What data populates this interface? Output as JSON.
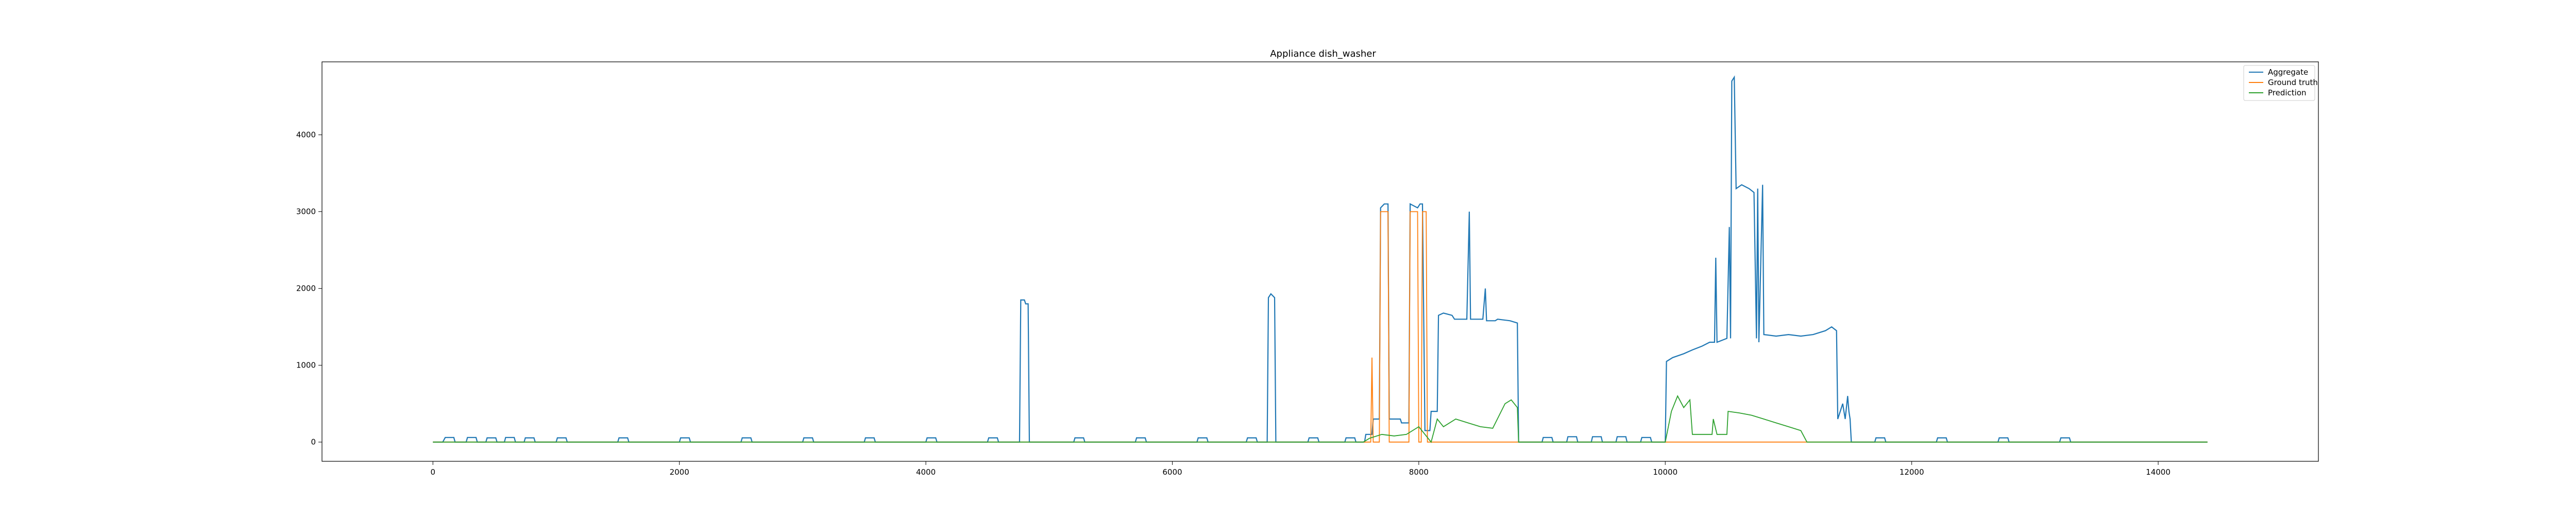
{
  "chart_data": {
    "type": "line",
    "title": "Appliance dish_washer",
    "xlabel": "",
    "ylabel": "",
    "xlim": [
      -900,
      15300
    ],
    "ylim": [
      -250,
      4950
    ],
    "x_ticks": [
      0,
      2000,
      4000,
      6000,
      8000,
      10000,
      12000,
      14000
    ],
    "y_ticks": [
      0,
      1000,
      2000,
      3000,
      4000
    ],
    "x_tick_labels": [
      "0",
      "2000",
      "4000",
      "6000",
      "8000",
      "10000",
      "12000",
      "14000"
    ],
    "y_tick_labels": [
      "0",
      "1000",
      "2000",
      "3000",
      "4000"
    ],
    "grid": false,
    "legend": {
      "placement": "top-right",
      "entries": [
        "Aggregate",
        "Ground truth",
        "Prediction"
      ]
    },
    "colors": {
      "Aggregate": "#1f77b4",
      "Ground truth": "#ff7f0e",
      "Prediction": "#2ca02c"
    },
    "series": [
      {
        "name": "Aggregate",
        "points": [
          [
            0,
            0
          ],
          [
            80,
            0
          ],
          [
            100,
            60
          ],
          [
            170,
            60
          ],
          [
            180,
            0
          ],
          [
            270,
            0
          ],
          [
            280,
            60
          ],
          [
            350,
            60
          ],
          [
            360,
            0
          ],
          [
            430,
            0
          ],
          [
            440,
            55
          ],
          [
            510,
            55
          ],
          [
            520,
            0
          ],
          [
            580,
            0
          ],
          [
            590,
            60
          ],
          [
            660,
            60
          ],
          [
            670,
            0
          ],
          [
            740,
            0
          ],
          [
            750,
            55
          ],
          [
            820,
            55
          ],
          [
            830,
            0
          ],
          [
            1000,
            0
          ],
          [
            1010,
            55
          ],
          [
            1080,
            55
          ],
          [
            1090,
            0
          ],
          [
            1500,
            0
          ],
          [
            1510,
            55
          ],
          [
            1580,
            55
          ],
          [
            1590,
            0
          ],
          [
            2000,
            0
          ],
          [
            2010,
            55
          ],
          [
            2080,
            55
          ],
          [
            2090,
            0
          ],
          [
            2500,
            0
          ],
          [
            2510,
            55
          ],
          [
            2580,
            55
          ],
          [
            2590,
            0
          ],
          [
            3000,
            0
          ],
          [
            3010,
            55
          ],
          [
            3080,
            55
          ],
          [
            3090,
            0
          ],
          [
            3500,
            0
          ],
          [
            3510,
            55
          ],
          [
            3580,
            55
          ],
          [
            3590,
            0
          ],
          [
            4000,
            0
          ],
          [
            4010,
            55
          ],
          [
            4080,
            55
          ],
          [
            4090,
            0
          ],
          [
            4500,
            0
          ],
          [
            4510,
            55
          ],
          [
            4580,
            55
          ],
          [
            4590,
            0
          ],
          [
            4760,
            0
          ],
          [
            4770,
            1850
          ],
          [
            4800,
            1850
          ],
          [
            4810,
            1800
          ],
          [
            4830,
            1800
          ],
          [
            4840,
            0
          ],
          [
            5200,
            0
          ],
          [
            5210,
            55
          ],
          [
            5280,
            55
          ],
          [
            5290,
            0
          ],
          [
            5700,
            0
          ],
          [
            5710,
            55
          ],
          [
            5780,
            55
          ],
          [
            5790,
            0
          ],
          [
            6200,
            0
          ],
          [
            6210,
            55
          ],
          [
            6280,
            55
          ],
          [
            6290,
            0
          ],
          [
            6600,
            0
          ],
          [
            6610,
            55
          ],
          [
            6680,
            55
          ],
          [
            6690,
            0
          ],
          [
            6770,
            0
          ],
          [
            6780,
            1880
          ],
          [
            6800,
            1930
          ],
          [
            6830,
            1880
          ],
          [
            6840,
            0
          ],
          [
            7100,
            0
          ],
          [
            7110,
            55
          ],
          [
            7180,
            55
          ],
          [
            7190,
            0
          ],
          [
            7400,
            0
          ],
          [
            7410,
            55
          ],
          [
            7480,
            55
          ],
          [
            7490,
            0
          ],
          [
            7560,
            0
          ],
          [
            7570,
            100
          ],
          [
            7620,
            100
          ],
          [
            7630,
            300
          ],
          [
            7680,
            300
          ],
          [
            7690,
            3050
          ],
          [
            7720,
            3100
          ],
          [
            7750,
            3100
          ],
          [
            7760,
            300
          ],
          [
            7850,
            300
          ],
          [
            7860,
            250
          ],
          [
            7920,
            250
          ],
          [
            7930,
            3100
          ],
          [
            7990,
            3050
          ],
          [
            8010,
            3100
          ],
          [
            8030,
            3100
          ],
          [
            8050,
            150
          ],
          [
            8090,
            150
          ],
          [
            8100,
            400
          ],
          [
            8150,
            400
          ],
          [
            8160,
            1650
          ],
          [
            8200,
            1680
          ],
          [
            8270,
            1650
          ],
          [
            8290,
            1600
          ],
          [
            8390,
            1600
          ],
          [
            8410,
            3000
          ],
          [
            8420,
            1600
          ],
          [
            8520,
            1600
          ],
          [
            8540,
            2000
          ],
          [
            8550,
            1580
          ],
          [
            8620,
            1580
          ],
          [
            8640,
            1600
          ],
          [
            8740,
            1580
          ],
          [
            8800,
            1550
          ],
          [
            8810,
            0
          ],
          [
            9000,
            0
          ],
          [
            9010,
            60
          ],
          [
            9080,
            60
          ],
          [
            9090,
            0
          ],
          [
            9200,
            0
          ],
          [
            9210,
            70
          ],
          [
            9280,
            70
          ],
          [
            9290,
            0
          ],
          [
            9400,
            0
          ],
          [
            9410,
            70
          ],
          [
            9480,
            70
          ],
          [
            9490,
            0
          ],
          [
            9600,
            0
          ],
          [
            9610,
            70
          ],
          [
            9680,
            70
          ],
          [
            9690,
            0
          ],
          [
            9800,
            0
          ],
          [
            9810,
            60
          ],
          [
            9880,
            60
          ],
          [
            9890,
            0
          ],
          [
            10000,
            0
          ],
          [
            10010,
            1050
          ],
          [
            10060,
            1100
          ],
          [
            10150,
            1150
          ],
          [
            10220,
            1200
          ],
          [
            10300,
            1250
          ],
          [
            10360,
            1300
          ],
          [
            10400,
            1300
          ],
          [
            10410,
            2400
          ],
          [
            10420,
            1300
          ],
          [
            10500,
            1350
          ],
          [
            10520,
            2800
          ],
          [
            10530,
            1350
          ],
          [
            10540,
            4700
          ],
          [
            10560,
            4750
          ],
          [
            10575,
            3300
          ],
          [
            10620,
            3350
          ],
          [
            10680,
            3300
          ],
          [
            10720,
            3250
          ],
          [
            10740,
            1350
          ],
          [
            10750,
            3300
          ],
          [
            10760,
            1300
          ],
          [
            10790,
            3350
          ],
          [
            10800,
            1400
          ],
          [
            10900,
            1380
          ],
          [
            11000,
            1400
          ],
          [
            11100,
            1380
          ],
          [
            11200,
            1400
          ],
          [
            11300,
            1450
          ],
          [
            11350,
            1500
          ],
          [
            11390,
            1450
          ],
          [
            11400,
            300
          ],
          [
            11440,
            500
          ],
          [
            11460,
            300
          ],
          [
            11480,
            600
          ],
          [
            11490,
            400
          ],
          [
            11500,
            300
          ],
          [
            11510,
            0
          ],
          [
            11700,
            0
          ],
          [
            11710,
            55
          ],
          [
            11780,
            55
          ],
          [
            11790,
            0
          ],
          [
            12200,
            0
          ],
          [
            12210,
            55
          ],
          [
            12280,
            55
          ],
          [
            12290,
            0
          ],
          [
            12700,
            0
          ],
          [
            12710,
            55
          ],
          [
            12780,
            55
          ],
          [
            12790,
            0
          ],
          [
            13200,
            0
          ],
          [
            13210,
            55
          ],
          [
            13280,
            55
          ],
          [
            13290,
            0
          ],
          [
            13400,
            0
          ],
          [
            14400,
            0
          ]
        ]
      },
      {
        "name": "Ground truth",
        "points": [
          [
            0,
            0
          ],
          [
            7610,
            0
          ],
          [
            7620,
            1100
          ],
          [
            7630,
            0
          ],
          [
            7680,
            0
          ],
          [
            7690,
            3000
          ],
          [
            7750,
            3000
          ],
          [
            7760,
            0
          ],
          [
            7920,
            0
          ],
          [
            7930,
            3000
          ],
          [
            7990,
            3000
          ],
          [
            8000,
            0
          ],
          [
            8020,
            0
          ],
          [
            8030,
            3000
          ],
          [
            8060,
            3000
          ],
          [
            8070,
            0
          ],
          [
            11200,
            0
          ],
          [
            14400,
            0
          ]
        ]
      },
      {
        "name": "Prediction",
        "points": [
          [
            0,
            0
          ],
          [
            7550,
            0
          ],
          [
            7600,
            50
          ],
          [
            7700,
            100
          ],
          [
            7800,
            80
          ],
          [
            7900,
            100
          ],
          [
            8000,
            200
          ],
          [
            8100,
            0
          ],
          [
            8150,
            300
          ],
          [
            8200,
            200
          ],
          [
            8300,
            300
          ],
          [
            8400,
            250
          ],
          [
            8500,
            200
          ],
          [
            8600,
            180
          ],
          [
            8700,
            500
          ],
          [
            8750,
            550
          ],
          [
            8800,
            450
          ],
          [
            8810,
            0
          ],
          [
            10000,
            0
          ],
          [
            10050,
            400
          ],
          [
            10100,
            600
          ],
          [
            10150,
            450
          ],
          [
            10200,
            550
          ],
          [
            10220,
            100
          ],
          [
            10380,
            100
          ],
          [
            10390,
            300
          ],
          [
            10420,
            100
          ],
          [
            10500,
            100
          ],
          [
            10510,
            400
          ],
          [
            10600,
            380
          ],
          [
            10700,
            350
          ],
          [
            10800,
            300
          ],
          [
            10900,
            250
          ],
          [
            11000,
            200
          ],
          [
            11100,
            150
          ],
          [
            11150,
            0
          ],
          [
            14400,
            0
          ]
        ]
      }
    ]
  }
}
